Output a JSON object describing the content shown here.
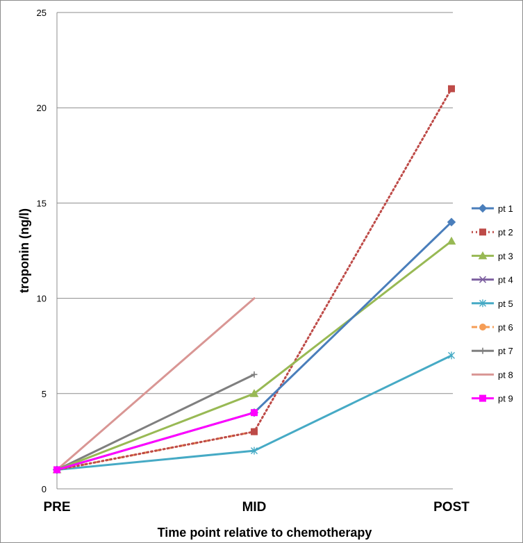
{
  "chart_data": {
    "type": "line",
    "title": "",
    "xlabel": "Time point relative to chemotherapy",
    "ylabel": "troponin (ng/l)",
    "categories": [
      "PRE",
      "MID",
      "POST"
    ],
    "ylim": [
      0,
      25
    ],
    "yticks": [
      0,
      5,
      10,
      15,
      20,
      25
    ],
    "grid": true,
    "legend_position": "right",
    "series": [
      {
        "name": "pt 1",
        "values": [
          1,
          4,
          14
        ],
        "color": "#4a7ebb",
        "dash": "solid",
        "marker": "diamond"
      },
      {
        "name": "pt 2",
        "values": [
          1,
          3,
          21
        ],
        "color": "#be4b48",
        "dash": "dotted",
        "marker": "square"
      },
      {
        "name": "pt 3",
        "values": [
          1,
          5,
          13
        ],
        "color": "#98b954",
        "dash": "solid",
        "marker": "triangle"
      },
      {
        "name": "pt 4",
        "values": [
          1,
          null,
          null
        ],
        "color": "#7d60a0",
        "dash": "solid",
        "marker": "x"
      },
      {
        "name": "pt 5",
        "values": [
          1,
          2,
          7
        ],
        "color": "#46aac5",
        "dash": "solid",
        "marker": "star"
      },
      {
        "name": "pt 6",
        "values": [
          1,
          3,
          null
        ],
        "color": "#f59d56",
        "dash": "dashdot",
        "marker": "circle"
      },
      {
        "name": "pt 7",
        "values": [
          1,
          6,
          null
        ],
        "color": "#7f7f7f",
        "dash": "solid",
        "marker": "plus"
      },
      {
        "name": "pt 8",
        "values": [
          1,
          10,
          null
        ],
        "color": "#d99694",
        "dash": "solid",
        "marker": "none"
      },
      {
        "name": "pt 9",
        "values": [
          1,
          4,
          null
        ],
        "color": "#ff00ff",
        "dash": "solid",
        "marker": "square"
      }
    ]
  }
}
